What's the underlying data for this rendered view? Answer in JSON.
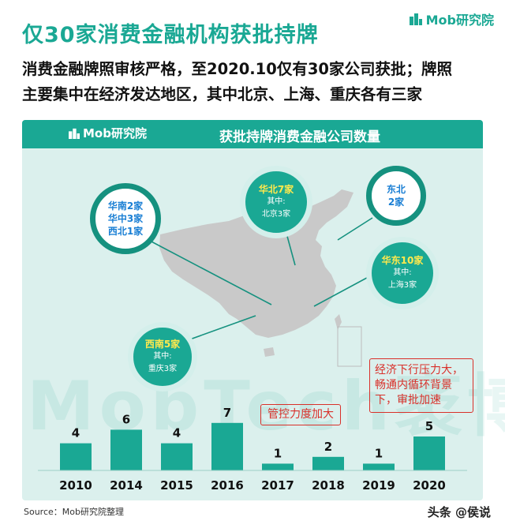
{
  "brand": {
    "name": "Mob研究院"
  },
  "title": "仅30家消费金融机构获批持牌",
  "subtitle_lines": [
    "消费金融牌照审核严格，至2020.10仅有30家公司获批；牌照",
    "主要集中在经济发达地区，其中北京、上海、重庆各有三家"
  ],
  "panel": {
    "logo": "Mob研究院",
    "title": "获批持牌消费金融公司数量",
    "watermark": "MobTech袤博"
  },
  "regions": {
    "south": {
      "lines": [
        "华南2家",
        "华中3家",
        "西北1家"
      ]
    },
    "north": {
      "title": "华北7家",
      "note_label": "其中:",
      "note": "北京3家"
    },
    "northeast": {
      "lines": [
        "东北",
        "2家"
      ]
    },
    "east": {
      "title": "华东10家",
      "note_label": "其中:",
      "note": "上海3家"
    },
    "southwest": {
      "title": "西南5家",
      "note_label": "其中:",
      "note": "重庆3家"
    }
  },
  "annotations": {
    "tightening": "管控力度加大",
    "pressure_lines": [
      "经济下行压力大，",
      "畅通内循环背景",
      "下，审批加速"
    ]
  },
  "colors": {
    "teal": "#1aa894",
    "dark_teal": "#15917f",
    "panel_bg": "#dbf0ed",
    "map_gray": "#c9c9c9",
    "red": "#d9302a",
    "blue": "#1a7fd4",
    "yellow": "#ffe94d"
  },
  "chart_data": {
    "type": "bar",
    "title": "获批持牌消费金融公司数量",
    "categories": [
      "2010",
      "2014",
      "2015",
      "2016",
      "2017",
      "2018",
      "2019",
      "2020"
    ],
    "values": [
      4,
      6,
      4,
      7,
      1,
      2,
      1,
      5
    ],
    "data_labels": true,
    "grid": false,
    "legend": "none"
  },
  "source": "Source：Mob研究院整理",
  "corner_mark": "头条 @侯说"
}
